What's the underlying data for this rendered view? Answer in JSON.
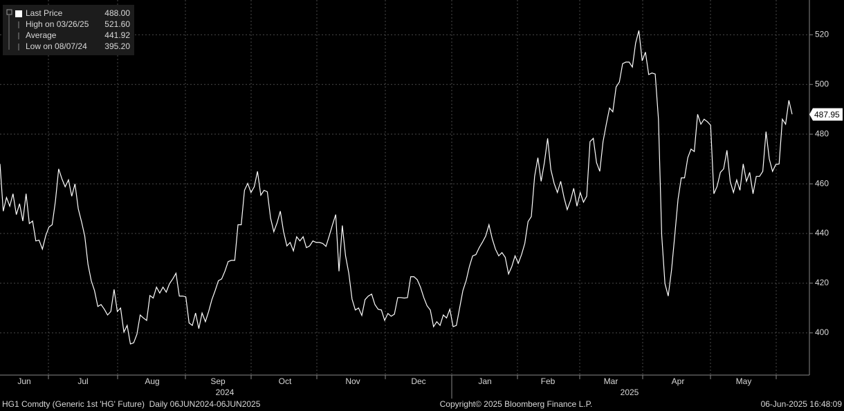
{
  "chart_data": {
    "type": "line",
    "series": [
      {
        "name": "Last Price",
        "color": "#ffffff",
        "values": [
          468,
          449,
          454.5,
          451,
          456,
          447.6,
          452,
          445,
          456,
          444,
          445,
          437,
          437.3,
          433.7,
          439,
          442.6,
          443.5,
          453,
          466,
          462,
          458.8,
          461.6,
          455,
          460,
          450,
          444.8,
          439,
          427.6,
          421,
          417,
          410.6,
          411.4,
          409.5,
          407.2,
          408.6,
          417.5,
          408.6,
          410,
          400.3,
          403,
          395.5,
          396,
          399.4,
          407.2,
          406,
          405,
          415,
          414,
          418.4,
          416,
          418.4,
          416.4,
          419.8,
          421.7,
          424,
          414.8,
          414.8,
          414.5,
          404,
          403,
          408,
          401.7,
          408,
          404.5,
          408.6,
          413.4,
          417,
          421,
          421.7,
          424.8,
          428.7,
          429.2,
          429.2,
          443.5,
          443.5,
          457.4,
          460.2,
          456.5,
          458.8,
          465,
          455.4,
          457.4,
          456.8,
          446.2,
          440.7,
          444.3,
          449,
          440.7,
          435,
          436.4,
          433,
          438.7,
          437,
          438.7,
          434.3,
          435,
          437,
          436.4,
          436.4,
          436,
          434.8,
          439,
          443.5,
          447.6,
          424.8,
          443.2,
          431,
          424,
          413.6,
          409.2,
          410,
          407,
          413.4,
          414.8,
          415.6,
          411.4,
          409.5,
          409.2,
          405,
          407.8,
          406.7,
          407.5,
          414.2,
          414.2,
          414,
          414.2,
          422.6,
          422.6,
          421.4,
          418.4,
          414.2,
          410.9,
          409.2,
          402.5,
          404.5,
          403,
          407.2,
          406,
          409.5,
          402.5,
          403,
          410,
          417,
          421,
          426.7,
          431,
          431.5,
          434.3,
          436.5,
          439,
          443.5,
          437.9,
          433.7,
          431,
          432.3,
          430.4,
          423.7,
          426.7,
          431,
          428,
          431.5,
          436,
          444.8,
          446.8,
          463,
          470.5,
          461,
          468.5,
          478.3,
          465.7,
          460.2,
          456.5,
          461,
          454.6,
          449.6,
          453.2,
          458.2,
          451,
          456.5,
          452.6,
          455,
          477,
          478.3,
          468.5,
          465,
          477,
          484,
          490.5,
          489,
          499,
          501,
          508.4,
          509,
          509,
          507,
          516.7,
          521.7,
          509.5,
          513,
          504,
          504.6,
          504.2,
          486,
          439.3,
          419.8,
          414.8,
          425.3,
          439.3,
          453.8,
          462.4,
          462.4,
          470.5,
          474,
          473,
          488,
          484,
          486,
          485,
          483.6,
          456,
          459,
          464.6,
          466,
          473.5,
          461,
          456.5,
          461.6,
          457.4,
          468,
          461,
          464.6,
          456,
          463,
          463,
          465,
          481,
          470,
          465,
          467.8,
          468,
          486,
          484,
          493.6,
          488
        ]
      }
    ],
    "legend": [
      {
        "label": "Last Price",
        "value": 488,
        "value_label": "488.00"
      },
      {
        "label": "High on 03/26/25",
        "value": 521.6,
        "value_label": "521.60"
      },
      {
        "label": "Average",
        "value": 441.92,
        "value_label": "441.92"
      },
      {
        "label": "Low on 08/07/24",
        "value": 395.2,
        "value_label": "395.20"
      }
    ],
    "last_value": 487.95,
    "ylim": [
      383,
      534
    ],
    "yticks": [
      400,
      420,
      440,
      460,
      480,
      500,
      520
    ],
    "grid": true,
    "months": [
      "Jun",
      "Jul",
      "Aug",
      "Sep",
      "Oct",
      "Nov",
      "Dec",
      "Jan",
      "Feb",
      "Mar",
      "Apr",
      "May"
    ],
    "years": [
      "2024",
      "2025"
    ],
    "footer": {
      "left": "HG1 Comdty (Generic 1st 'HG' Future)  Daily 06JUN2024-06JUN2025",
      "center": "Copyright© 2025 Bloomberg Finance L.P.",
      "right": "06-Jun-2025 16:48:09"
    }
  }
}
